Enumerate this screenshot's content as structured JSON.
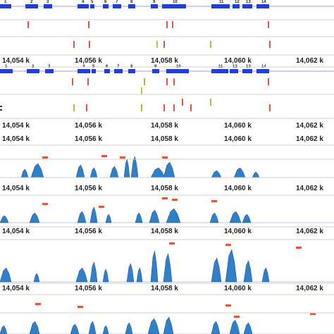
{
  "viewer": {
    "ruler_labels": [
      "14,054 k",
      "14,056 k",
      "14,058 k",
      "14,060 k",
      "14,062 k"
    ],
    "exon_numbers": [
      "1",
      "2",
      "3",
      "4",
      "5",
      "6",
      "7",
      "8",
      "9",
      "10",
      "11",
      "12",
      "13",
      "14"
    ],
    "colors": {
      "exon": "#1f3fd8",
      "intron_line": "#9aa3e8",
      "coverage": "#2f7fc9",
      "coverage_dark": "#1a4f8f",
      "variant": "#e0573b",
      "variant_alt": "#d4a73a",
      "variant_alt2": "#a9c94a",
      "ruler_text": "#222222",
      "separator": "#cfcfcf"
    },
    "icons": [
      "gene-track",
      "variant-track",
      "coverage-track",
      "ruler"
    ]
  }
}
